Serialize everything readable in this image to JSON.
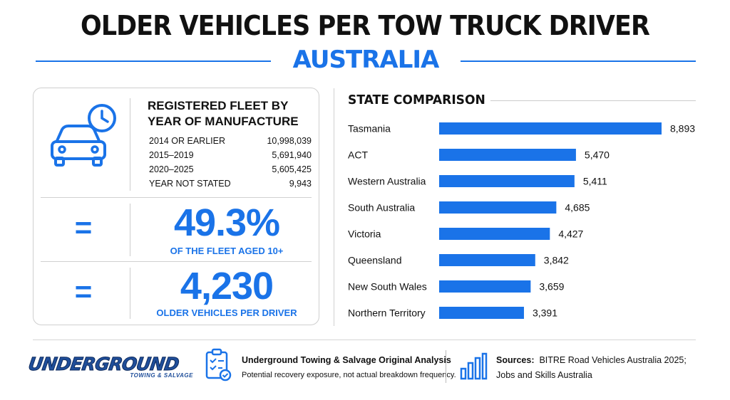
{
  "header": {
    "title": "OLDER VEHICLES PER TOW TRUCK DRIVER",
    "subtitle": "AUSTRALIA"
  },
  "fleet": {
    "title_line1": "REGISTERED FLEET BY",
    "title_line2": "YEAR OF MANUFACTURE",
    "rows": [
      {
        "label": "2014 OR EARLIER",
        "value": "10,998,039"
      },
      {
        "label": "2015–2019",
        "value": "5,691,940"
      },
      {
        "label": "2020–2025",
        "value": "5,605,425"
      },
      {
        "label": "YEAR NOT STATED",
        "value": "9,943"
      }
    ],
    "icon": "car-clock-icon"
  },
  "stats": [
    {
      "symbol": "=",
      "value": "49.3%",
      "caption": "OF THE FLEET AGED 10+"
    },
    {
      "symbol": "=",
      "value": "4,230",
      "caption": "OLDER VEHICLES PER DRIVER"
    }
  ],
  "chart_data": {
    "type": "bar",
    "orientation": "horizontal",
    "title": "STATE COMPARISON",
    "categories": [
      "Tasmania",
      "ACT",
      "Western Australia",
      "South Australia",
      "Victoria",
      "Queensland",
      "New South Wales",
      "Northern Territory"
    ],
    "values": [
      8893,
      5470,
      5411,
      4685,
      4427,
      3842,
      3659,
      3391
    ],
    "value_labels": [
      "8,893",
      "5,470",
      "5,411",
      "4,685",
      "4,427",
      "3,842",
      "3,659",
      "3,391"
    ],
    "xlim": [
      0,
      8893
    ],
    "grid": false,
    "legend": "none",
    "bar_color": "#1a73e8"
  },
  "footer": {
    "logo_main": "UNDERGROUND",
    "logo_sub": "TOWING & SALVAGE",
    "analysis_title": "Underground Towing & Salvage Original Analysis",
    "analysis_sub": "Potential recovery exposure, not actual breakdown frequency.",
    "sources_label": "Sources:",
    "sources_line1": "BITRE Road Vehicles Australia 2025;",
    "sources_line2": "Jobs and Skills Australia"
  },
  "colors": {
    "accent": "#1a73e8",
    "text": "#111111"
  }
}
